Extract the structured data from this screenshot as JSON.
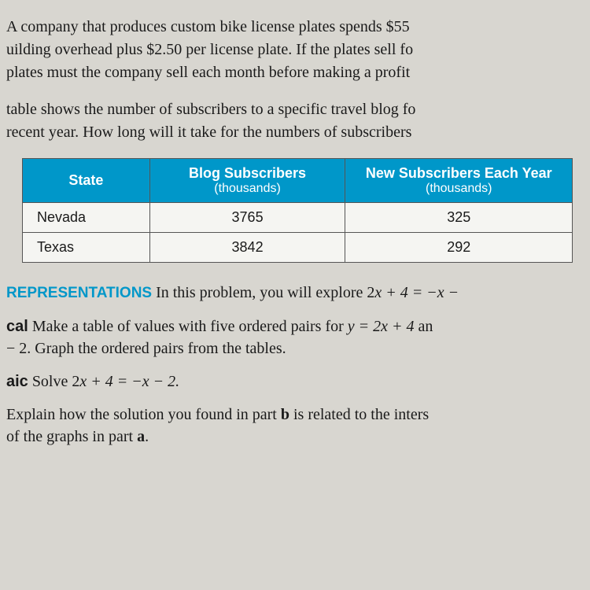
{
  "para1_l1": "A company that produces custom bike license plates spends $55",
  "para1_l2": "uilding overhead plus $2.50 per license plate. If the plates sell fo",
  "para1_l3": "plates must the company sell each month before making a profit",
  "para2_l1": "table shows the number of subscribers to a specific travel blog fo",
  "para2_l2": "recent year. How long will it take for the numbers of subscribers",
  "table": {
    "col1_header": "State",
    "col2_header_top": "Blog Subscribers",
    "col2_header_sub": "(thousands)",
    "col3_header_top": "New Subscribers Each Year",
    "col3_header_sub": "(thousands)",
    "rows": [
      {
        "state": "Nevada",
        "subs": "3765",
        "new": "325"
      },
      {
        "state": "Texas",
        "subs": "3842",
        "new": "292"
      }
    ]
  },
  "repr_head": "REPRESENTATIONS",
  "repr_text": "  In this problem, you will explore 2",
  "repr_math": "x + 4 = −x −",
  "cal_label": "cal",
  "cal_l1a": "  Make a table of values with five ordered pairs for ",
  "cal_l1b": "y = 2x + 4",
  "cal_l1c": " an",
  "cal_l2": " − 2. Graph the ordered pairs from the tables.",
  "aic_label": "aic",
  "aic_text": "  Solve 2",
  "aic_math": "x + 4 = −x − 2.",
  "exp_l1a": " Explain how the solution you found in part ",
  "exp_l1b": "b",
  "exp_l1c": " is related to the inters",
  "exp_l2a": "of the graphs in part ",
  "exp_l2b": "a",
  "exp_l2c": "."
}
